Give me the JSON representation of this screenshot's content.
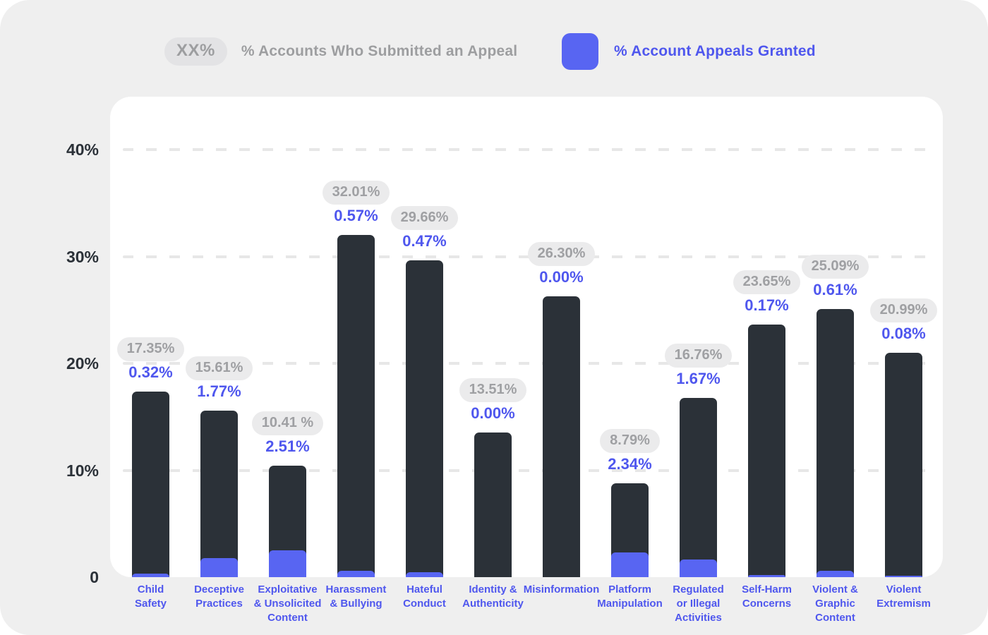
{
  "legend": {
    "submitted": {
      "pill_label": "XX%",
      "label": "% Accounts Who Submitted an Appeal"
    },
    "granted": {
      "label": "% Account Appeals Granted"
    }
  },
  "colors": {
    "page_background": "#EFEFEF",
    "card_background": "#FFFFFF",
    "bar_dark": "#2B3138",
    "blurple_fill": "#5865F2",
    "blurple_text": "#4F57EE",
    "gray_text": "#9D9EA0",
    "pill_background": "#EBEBEC",
    "gridline": "#E7E7E7"
  },
  "chart_data": {
    "type": "bar",
    "title": "",
    "xlabel": "",
    "ylabel": "",
    "ylim": [
      0,
      42
    ],
    "grid": "horizontal dashed lines at 10%, 20%, 30%, 40%",
    "legend_position": "top",
    "y_ticks": [
      {
        "value": 40,
        "label": "40%"
      },
      {
        "value": 30,
        "label": "30%"
      },
      {
        "value": 20,
        "label": "20%"
      },
      {
        "value": 10,
        "label": "10%"
      },
      {
        "value": 0,
        "label": "0"
      }
    ],
    "categories": [
      {
        "name": "Child Safety",
        "label_lines": [
          "Child",
          "Safety"
        ],
        "submitted_pct": 17.35,
        "submitted_label": "17.35%",
        "granted_pct": 0.32,
        "granted_label": "0.32%"
      },
      {
        "name": "Deceptive Practices",
        "label_lines": [
          "Deceptive",
          "Practices"
        ],
        "submitted_pct": 15.61,
        "submitted_label": "15.61%",
        "granted_pct": 1.77,
        "granted_label": "1.77%"
      },
      {
        "name": "Exploitative & Unsolicited Content",
        "label_lines": [
          "Exploitative",
          "& Unsolicited",
          "Content"
        ],
        "submitted_pct": 10.41,
        "submitted_label": "10.41 %",
        "granted_pct": 2.51,
        "granted_label": "2.51%"
      },
      {
        "name": "Harassment & Bullying",
        "label_lines": [
          "Harassment",
          "& Bullying"
        ],
        "submitted_pct": 32.01,
        "submitted_label": "32.01%",
        "granted_pct": 0.57,
        "granted_label": "0.57%"
      },
      {
        "name": "Hateful Conduct",
        "label_lines": [
          "Hateful",
          "Conduct"
        ],
        "submitted_pct": 29.66,
        "submitted_label": "29.66%",
        "granted_pct": 0.47,
        "granted_label": "0.47%"
      },
      {
        "name": "Identity & Authenticity",
        "label_lines": [
          "Identity &",
          "Authenticity"
        ],
        "submitted_pct": 13.51,
        "submitted_label": "13.51%",
        "granted_pct": 0.0,
        "granted_label": "0.00%"
      },
      {
        "name": "Misinformation",
        "label_lines": [
          "Misinformation"
        ],
        "submitted_pct": 26.3,
        "submitted_label": "26.30%",
        "granted_pct": 0.0,
        "granted_label": "0.00%"
      },
      {
        "name": "Platform Manipulation",
        "label_lines": [
          "Platform",
          "Manipulation"
        ],
        "submitted_pct": 8.79,
        "submitted_label": "8.79%",
        "granted_pct": 2.34,
        "granted_label": "2.34%"
      },
      {
        "name": "Regulated or Illegal Activities",
        "label_lines": [
          "Regulated",
          "or Illegal",
          "Activities"
        ],
        "submitted_pct": 16.76,
        "submitted_label": "16.76%",
        "granted_pct": 1.67,
        "granted_label": "1.67%"
      },
      {
        "name": "Self-Harm Concerns",
        "label_lines": [
          "Self-Harm",
          "Concerns"
        ],
        "submitted_pct": 23.65,
        "submitted_label": "23.65%",
        "granted_pct": 0.17,
        "granted_label": "0.17%"
      },
      {
        "name": "Violent & Graphic Content",
        "label_lines": [
          "Violent &",
          "Graphic",
          "Content"
        ],
        "submitted_pct": 25.09,
        "submitted_label": "25.09%",
        "granted_pct": 0.61,
        "granted_label": "0.61%"
      },
      {
        "name": "Violent Extremism",
        "label_lines": [
          "Violent",
          "Extremism"
        ],
        "submitted_pct": 20.99,
        "submitted_label": "20.99%",
        "granted_pct": 0.08,
        "granted_label": "0.08%"
      }
    ],
    "series": [
      {
        "name": "% Accounts Who Submitted an Appeal",
        "values": [
          17.35,
          15.61,
          10.41,
          32.01,
          29.66,
          13.51,
          26.3,
          8.79,
          16.76,
          23.65,
          25.09,
          20.99
        ]
      },
      {
        "name": "% Account Appeals Granted",
        "values": [
          0.32,
          1.77,
          2.51,
          0.57,
          0.47,
          0.0,
          0.0,
          2.34,
          1.67,
          0.17,
          0.61,
          0.08
        ]
      }
    ]
  }
}
